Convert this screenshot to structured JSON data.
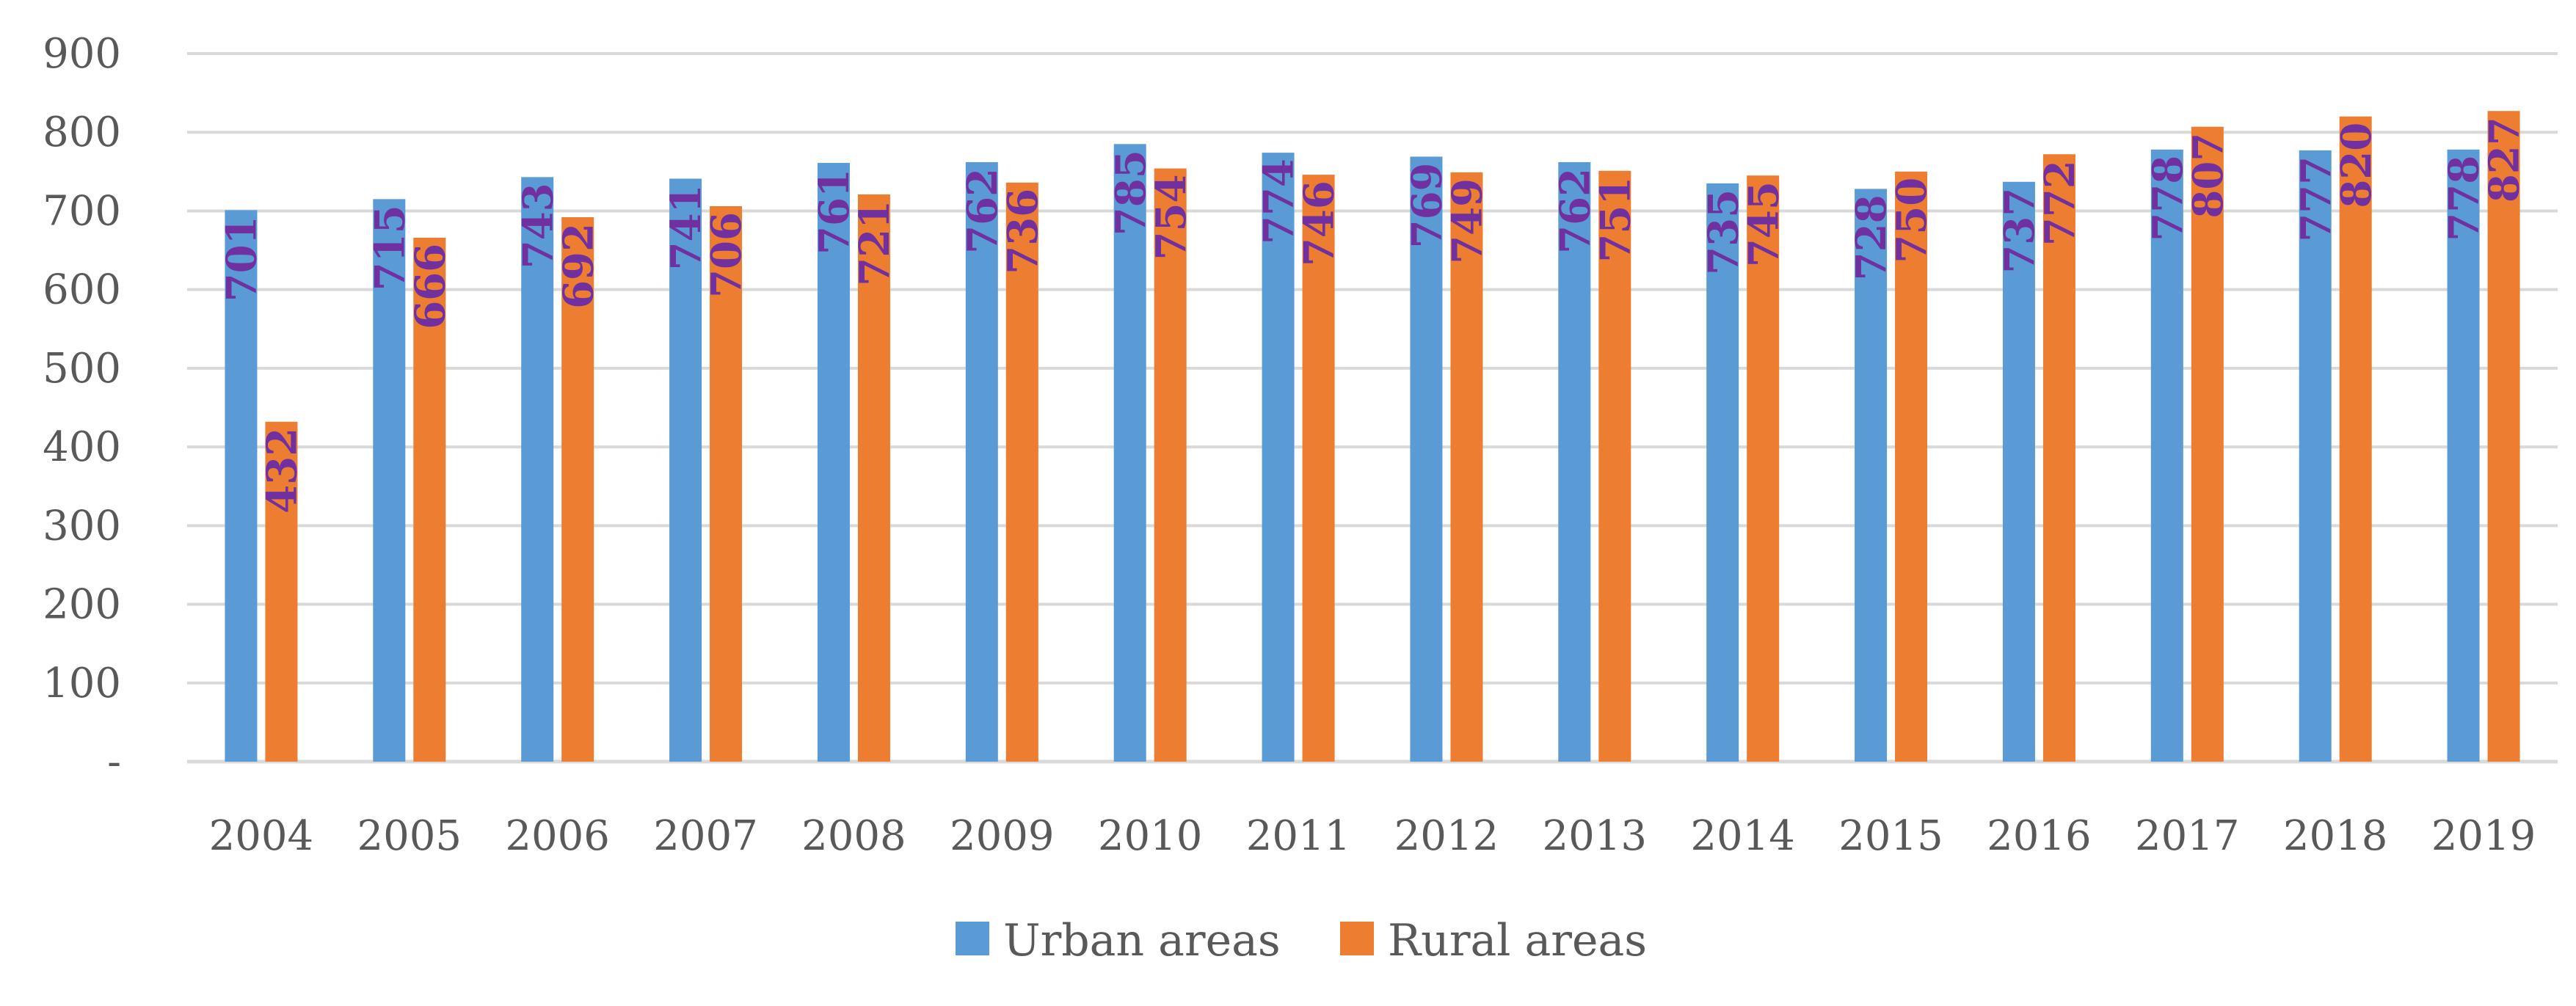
{
  "chart_data": {
    "type": "bar",
    "title": "",
    "xlabel": "",
    "ylabel": "",
    "ylim": [
      0,
      900
    ],
    "yticks": [
      0,
      100,
      200,
      300,
      400,
      500,
      600,
      700,
      800,
      900
    ],
    "ytick_labels": [
      "-",
      "100",
      "200",
      "300",
      "400",
      "500",
      "600",
      "700",
      "800",
      "900"
    ],
    "grid": true,
    "legend": "bottom-center",
    "categories": [
      "2004",
      "2005",
      "2006",
      "2007",
      "2008",
      "2009",
      "2010",
      "2011",
      "2012",
      "2013",
      "2014",
      "2015",
      "2016",
      "2017",
      "2018",
      "2019"
    ],
    "series": [
      {
        "name": "Urban areas",
        "color": "#5B9BD5",
        "values": [
          701,
          715,
          743,
          741,
          761,
          762,
          785,
          774,
          769,
          762,
          735,
          728,
          737,
          778,
          777,
          778
        ]
      },
      {
        "name": "Rural areas",
        "color": "#ED7D31",
        "values": [
          432,
          666,
          692,
          706,
          721,
          736,
          754,
          746,
          749,
          751,
          745,
          750,
          772,
          807,
          820,
          827
        ]
      }
    ],
    "label_color": "#7030A0",
    "grid_color": "#D9D9D9",
    "axis_color": "#D9D9D9"
  }
}
